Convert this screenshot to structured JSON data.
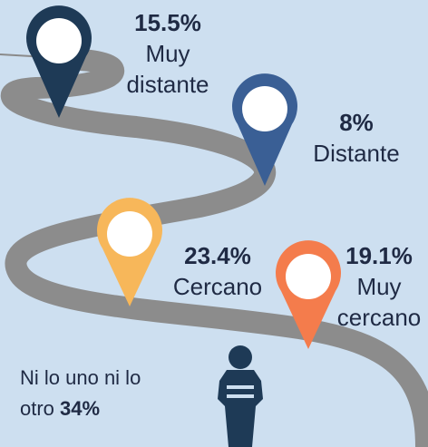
{
  "pins": [
    {
      "value": "15.5%",
      "label": "Muy distante"
    },
    {
      "value": "8%",
      "label": "Distante"
    },
    {
      "value": "23.4%",
      "label": "Cercano"
    },
    {
      "value": "19.1%",
      "label": "Muy cercano"
    }
  ],
  "footer": {
    "label": "Ni lo uno ni lo otro",
    "value": "34%"
  }
}
